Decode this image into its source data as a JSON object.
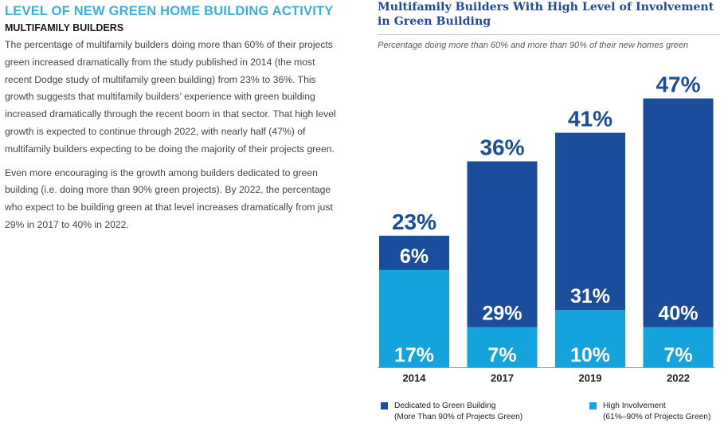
{
  "article": {
    "section_title": "LEVEL OF NEW GREEN HOME BUILDING ACTIVITY",
    "subsection_title": "MULTIFAMILY BUILDERS",
    "paragraph1": "The percentage of multifamily builders doing more than 60% of their projects green increased dramatically from the study published in 2014 (the most recent Dodge study of multifamily green building) from 23% to 36%. This growth suggests that multifamily builders’ experience with green building increased dramatically through the recent boom in that sector. That high level growth is expected to continue through 2022, with nearly half (47%) of multifamily builders expecting to be doing the majority of their projects green.",
    "paragraph2": "Even more encouraging is the growth among builders dedicated to green building (i.e. doing more than 90% green projects). By 2022, the percentage who expect to be building green at that level increases dramatically from just 29% in 2017 to 40% in 2022."
  },
  "colors": {
    "dedicated": "#1a4d9c",
    "high": "#14a3dd",
    "title_blue": "#1f4a9a",
    "section_blue": "#3aaee0"
  },
  "chart_data": {
    "type": "bar",
    "stacked": true,
    "title": "Multifamily Builders With High Level of Involvement in Green Building",
    "subtitle": "Percentage doing more than 60% and more than 90%  of their new homes green",
    "categories": [
      "2014",
      "2017",
      "2019",
      "2022"
    ],
    "series": [
      {
        "name": "High Involvement (61%–90% of Projects Green)",
        "values": [
          17,
          7,
          10,
          7
        ]
      },
      {
        "name": "Dedicated to Green Building (More Than 90% of Projects Green)",
        "values": [
          6,
          29,
          31,
          40
        ]
      }
    ],
    "totals": [
      23,
      36,
      41,
      47
    ],
    "value_suffix": "%",
    "ylim": [
      0,
      50
    ],
    "grid": false,
    "legend": {
      "position": "bottom",
      "entries": [
        {
          "series": "dedicated",
          "line1": "Dedicated to Green Building",
          "line2": "(More Than 90% of Projects Green)"
        },
        {
          "series": "high",
          "line1": "High Involvement",
          "line2": "(61%–90% of Projects Green)"
        }
      ]
    }
  }
}
